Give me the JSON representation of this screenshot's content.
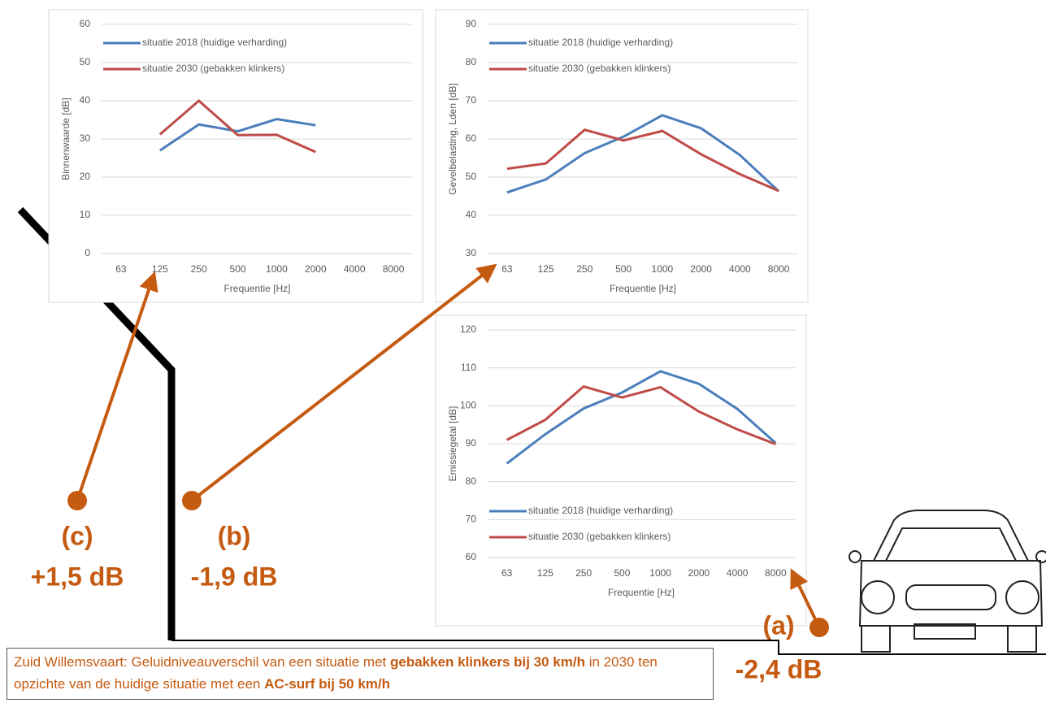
{
  "chart_data": [
    {
      "type": "line",
      "x_label": "Frequentie [Hz]",
      "y_label": "Binnenwaarde [dB]",
      "categories": [
        "63",
        "125",
        "250",
        "500",
        "1000",
        "2000",
        "4000",
        "8000"
      ],
      "series": [
        {
          "name": "situatie 2018 (huidige verharding)",
          "color": "#4a7ebb",
          "values": [
            null,
            27,
            33.8,
            32,
            35.2,
            33.6,
            null,
            null
          ]
        },
        {
          "name": "situatie 2030 (gebakken klinkers)",
          "color": "#be4b48",
          "values": [
            null,
            31.2,
            40,
            31,
            31.1,
            26.6,
            null,
            null
          ]
        }
      ],
      "ylim": [
        0,
        60
      ],
      "yticks": [
        0,
        10,
        20,
        30,
        40,
        50,
        60
      ],
      "grid": true,
      "legend": "upper left"
    },
    {
      "type": "line",
      "x_label": "Frequentie [Hz]",
      "y_label": "Gevelbelasting, Lden [dB]",
      "categories": [
        "63",
        "125",
        "250",
        "500",
        "1000",
        "2000",
        "4000",
        "8000"
      ],
      "series": [
        {
          "name": "situatie 2018 (huidige verharding)",
          "color": "#4a7ebb",
          "values": [
            46,
            49.4,
            56.3,
            60.6,
            66.2,
            62.8,
            55.8,
            46.3
          ]
        },
        {
          "name": "situatie 2030 (gebakken klinkers)",
          "color": "#be4b48",
          "values": [
            52.2,
            53.6,
            62.4,
            59.6,
            62.1,
            56,
            50.8,
            46.4
          ]
        }
      ],
      "ylim": [
        30,
        90
      ],
      "yticks": [
        30,
        40,
        50,
        60,
        70,
        80,
        90
      ],
      "grid": true,
      "legend": "upper left"
    },
    {
      "type": "line",
      "x_label": "Frequentie [Hz]",
      "y_label": "Emissiegetal [dB]",
      "categories": [
        "63",
        "125",
        "250",
        "500",
        "1000",
        "2000",
        "4000",
        "8000"
      ],
      "series": [
        {
          "name": "situatie 2018 (huidige verharding)",
          "color": "#4a7ebb",
          "values": [
            84.8,
            92.5,
            99.3,
            103.5,
            109.1,
            105.8,
            99.2,
            90.2
          ]
        },
        {
          "name": "situatie 2030 (gebakken klinkers)",
          "color": "#be4b48",
          "values": [
            91,
            96.3,
            105.1,
            102.2,
            104.9,
            98.5,
            93.8,
            89.9
          ]
        }
      ],
      "ylim": [
        60,
        120
      ],
      "yticks": [
        60,
        70,
        80,
        90,
        100,
        110,
        120
      ],
      "grid": true,
      "legend": "lower left"
    }
  ],
  "labels": [
    {
      "id": "(c)",
      "delta": "+1,5 dB"
    },
    {
      "id": "(b)",
      "delta": "-1,9 dB"
    },
    {
      "id": "(a)",
      "delta": "-2,4 dB"
    }
  ],
  "caption": [
    {
      "text": "Zuid Willemsvaart: Geluidniveauverschil van een situatie met ",
      "bold": false
    },
    {
      "text": "gebakken klinkers bij 30 km/h",
      "bold": true
    },
    {
      "text": " in 2030 ten opzichte van de huidige situatie met een ",
      "bold": false
    },
    {
      "text": "AC-surf bij 50 km/h",
      "bold": true
    }
  ]
}
